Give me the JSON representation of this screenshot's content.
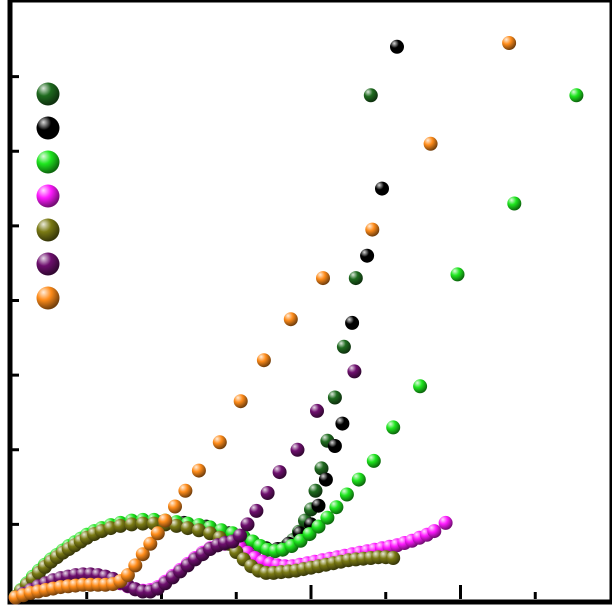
{
  "chart_data": {
    "type": "scatter",
    "title": "",
    "xlabel": "",
    "ylabel": "",
    "xlim": [
      0,
      8
    ],
    "ylim": [
      0,
      8
    ],
    "x_major_ticks": [
      0,
      2,
      4,
      6,
      8
    ],
    "x_minor_ticks": [
      1,
      3,
      5,
      7
    ],
    "y_ticks": [
      1,
      2,
      3,
      4,
      5,
      6,
      7
    ],
    "tick_labels_visible": false,
    "grid": false,
    "legend": {
      "placement": "top-left",
      "series_order": [
        "dark-green",
        "black",
        "green",
        "magenta",
        "olive",
        "purple",
        "orange"
      ]
    },
    "series": [
      {
        "key": "dark-green",
        "color": "#1f6b1f",
        "points": [
          [
            0.05,
            0.03
          ],
          [
            0.12,
            0.11
          ],
          [
            0.2,
            0.2
          ],
          [
            0.28,
            0.29
          ],
          [
            0.36,
            0.37
          ],
          [
            0.44,
            0.45
          ],
          [
            0.52,
            0.52
          ],
          [
            0.6,
            0.58
          ],
          [
            0.68,
            0.64
          ],
          [
            0.76,
            0.7
          ],
          [
            0.84,
            0.75
          ],
          [
            0.92,
            0.8
          ],
          [
            1.0,
            0.85
          ],
          [
            1.1,
            0.9
          ],
          [
            1.2,
            0.94
          ],
          [
            1.32,
            0.98
          ],
          [
            1.45,
            1.01
          ],
          [
            1.6,
            1.04
          ],
          [
            1.75,
            1.05
          ],
          [
            1.9,
            1.05
          ],
          [
            2.05,
            1.04
          ],
          [
            2.2,
            1.02
          ],
          [
            2.35,
            1.0
          ],
          [
            2.5,
            0.98
          ],
          [
            2.65,
            0.95
          ],
          [
            2.8,
            0.91
          ],
          [
            2.95,
            0.87
          ],
          [
            3.1,
            0.82
          ],
          [
            3.22,
            0.76
          ],
          [
            3.32,
            0.7
          ],
          [
            3.42,
            0.66
          ],
          [
            3.52,
            0.65
          ],
          [
            3.6,
            0.67
          ],
          [
            3.68,
            0.72
          ],
          [
            3.76,
            0.79
          ],
          [
            3.84,
            0.9
          ],
          [
            3.92,
            1.05
          ],
          [
            4.0,
            1.2
          ],
          [
            4.06,
            1.45
          ],
          [
            4.14,
            1.75
          ],
          [
            4.22,
            2.12
          ],
          [
            4.32,
            2.7
          ],
          [
            4.44,
            3.38
          ],
          [
            4.6,
            4.3
          ],
          [
            4.8,
            6.75
          ]
        ]
      },
      {
        "key": "black",
        "color": "#000000",
        "points": [
          [
            2.0,
            1.03
          ],
          [
            2.3,
            1.02
          ],
          [
            2.6,
            0.97
          ],
          [
            2.9,
            0.88
          ],
          [
            3.2,
            0.76
          ],
          [
            3.4,
            0.68
          ],
          [
            3.55,
            0.67
          ],
          [
            3.7,
            0.74
          ],
          [
            3.85,
            0.88
          ],
          [
            4.0,
            1.0
          ],
          [
            4.1,
            1.25
          ],
          [
            4.2,
            1.6
          ],
          [
            4.32,
            2.05
          ],
          [
            4.42,
            2.35
          ],
          [
            4.55,
            3.7
          ],
          [
            4.75,
            4.6
          ],
          [
            4.95,
            5.5
          ],
          [
            5.15,
            7.4
          ]
        ]
      },
      {
        "key": "green",
        "color": "#1ee61e",
        "points": [
          [
            0.05,
            0.03
          ],
          [
            0.12,
            0.12
          ],
          [
            0.2,
            0.21
          ],
          [
            0.28,
            0.3
          ],
          [
            0.36,
            0.38
          ],
          [
            0.44,
            0.46
          ],
          [
            0.52,
            0.53
          ],
          [
            0.6,
            0.59
          ],
          [
            0.68,
            0.65
          ],
          [
            0.76,
            0.71
          ],
          [
            0.84,
            0.76
          ],
          [
            0.92,
            0.81
          ],
          [
            1.0,
            0.86
          ],
          [
            1.1,
            0.91
          ],
          [
            1.2,
            0.95
          ],
          [
            1.32,
            0.99
          ],
          [
            1.45,
            1.02
          ],
          [
            1.6,
            1.05
          ],
          [
            1.75,
            1.06
          ],
          [
            1.9,
            1.06
          ],
          [
            2.05,
            1.05
          ],
          [
            2.2,
            1.03
          ],
          [
            2.35,
            1.01
          ],
          [
            2.5,
            0.99
          ],
          [
            2.65,
            0.96
          ],
          [
            2.8,
            0.92
          ],
          [
            2.95,
            0.88
          ],
          [
            3.1,
            0.83
          ],
          [
            3.22,
            0.77
          ],
          [
            3.32,
            0.71
          ],
          [
            3.42,
            0.66
          ],
          [
            3.52,
            0.64
          ],
          [
            3.62,
            0.66
          ],
          [
            3.74,
            0.71
          ],
          [
            3.86,
            0.78
          ],
          [
            3.98,
            0.87
          ],
          [
            4.1,
            0.97
          ],
          [
            4.22,
            1.09
          ],
          [
            4.34,
            1.23
          ],
          [
            4.48,
            1.4
          ],
          [
            4.64,
            1.6
          ],
          [
            4.84,
            1.85
          ],
          [
            5.1,
            2.3
          ],
          [
            5.46,
            2.85
          ],
          [
            5.96,
            4.35
          ],
          [
            6.72,
            5.3
          ],
          [
            7.55,
            6.75
          ]
        ]
      },
      {
        "key": "magenta",
        "color": "#ff1aff",
        "points": [
          [
            0.05,
            0.02
          ],
          [
            0.15,
            0.06
          ],
          [
            0.25,
            0.11
          ],
          [
            0.35,
            0.16
          ],
          [
            0.45,
            0.2
          ],
          [
            0.55,
            0.23
          ],
          [
            0.65,
            0.26
          ],
          [
            0.75,
            0.28
          ],
          [
            0.85,
            0.3
          ],
          [
            0.95,
            0.31
          ],
          [
            1.05,
            0.31
          ],
          [
            1.15,
            0.3
          ],
          [
            1.25,
            0.28
          ],
          [
            1.35,
            0.25
          ],
          [
            1.45,
            0.21
          ],
          [
            1.55,
            0.17
          ],
          [
            1.65,
            0.13
          ],
          [
            1.75,
            0.11
          ],
          [
            1.85,
            0.12
          ],
          [
            1.95,
            0.16
          ],
          [
            2.05,
            0.23
          ],
          [
            2.15,
            0.31
          ],
          [
            2.25,
            0.39
          ],
          [
            2.35,
            0.47
          ],
          [
            2.45,
            0.55
          ],
          [
            2.55,
            0.62
          ],
          [
            2.65,
            0.68
          ],
          [
            2.75,
            0.72
          ],
          [
            2.85,
            0.74
          ],
          [
            2.95,
            0.73
          ],
          [
            3.05,
            0.69
          ],
          [
            3.15,
            0.62
          ],
          [
            3.25,
            0.55
          ],
          [
            3.35,
            0.5
          ],
          [
            3.45,
            0.47
          ],
          [
            3.55,
            0.45
          ],
          [
            3.65,
            0.44
          ],
          [
            3.75,
            0.44
          ],
          [
            3.85,
            0.46
          ],
          [
            3.95,
            0.48
          ],
          [
            4.05,
            0.5
          ],
          [
            4.15,
            0.52
          ],
          [
            4.25,
            0.54
          ],
          [
            4.35,
            0.56
          ],
          [
            4.45,
            0.58
          ],
          [
            4.55,
            0.6
          ],
          [
            4.65,
            0.62
          ],
          [
            4.75,
            0.64
          ],
          [
            4.85,
            0.66
          ],
          [
            4.95,
            0.68
          ],
          [
            5.05,
            0.7
          ],
          [
            5.15,
            0.72
          ],
          [
            5.25,
            0.75
          ],
          [
            5.35,
            0.78
          ],
          [
            5.45,
            0.82
          ],
          [
            5.55,
            0.86
          ],
          [
            5.65,
            0.91
          ],
          [
            5.8,
            1.02
          ]
        ]
      },
      {
        "key": "olive",
        "color": "#7a7a14",
        "points": [
          [
            0.05,
            0.03
          ],
          [
            0.12,
            0.11
          ],
          [
            0.2,
            0.19
          ],
          [
            0.28,
            0.27
          ],
          [
            0.36,
            0.35
          ],
          [
            0.44,
            0.43
          ],
          [
            0.52,
            0.5
          ],
          [
            0.6,
            0.56
          ],
          [
            0.68,
            0.62
          ],
          [
            0.76,
            0.67
          ],
          [
            0.84,
            0.72
          ],
          [
            0.92,
            0.77
          ],
          [
            1.0,
            0.82
          ],
          [
            1.1,
            0.87
          ],
          [
            1.2,
            0.91
          ],
          [
            1.32,
            0.95
          ],
          [
            1.45,
            0.98
          ],
          [
            1.6,
            1.0
          ],
          [
            1.75,
            1.01
          ],
          [
            1.9,
            1.01
          ],
          [
            2.05,
            1.0
          ],
          [
            2.2,
            0.98
          ],
          [
            2.35,
            0.95
          ],
          [
            2.5,
            0.92
          ],
          [
            2.65,
            0.88
          ],
          [
            2.78,
            0.82
          ],
          [
            2.9,
            0.74
          ],
          [
            3.0,
            0.63
          ],
          [
            3.1,
            0.53
          ],
          [
            3.2,
            0.44
          ],
          [
            3.3,
            0.38
          ],
          [
            3.4,
            0.35
          ],
          [
            3.5,
            0.35
          ],
          [
            3.6,
            0.36
          ],
          [
            3.7,
            0.37
          ],
          [
            3.8,
            0.38
          ],
          [
            3.9,
            0.4
          ],
          [
            4.0,
            0.42
          ],
          [
            4.1,
            0.44
          ],
          [
            4.2,
            0.46
          ],
          [
            4.3,
            0.48
          ],
          [
            4.4,
            0.5
          ],
          [
            4.5,
            0.52
          ],
          [
            4.6,
            0.53
          ],
          [
            4.7,
            0.54
          ],
          [
            4.8,
            0.55
          ],
          [
            4.9,
            0.56
          ],
          [
            5.0,
            0.56
          ],
          [
            5.1,
            0.55
          ]
        ]
      },
      {
        "key": "purple",
        "color": "#6e0f6e",
        "points": [
          [
            0.05,
            0.02
          ],
          [
            0.15,
            0.07
          ],
          [
            0.25,
            0.12
          ],
          [
            0.35,
            0.17
          ],
          [
            0.45,
            0.21
          ],
          [
            0.55,
            0.25
          ],
          [
            0.65,
            0.28
          ],
          [
            0.75,
            0.3
          ],
          [
            0.85,
            0.32
          ],
          [
            0.95,
            0.33
          ],
          [
            1.05,
            0.33
          ],
          [
            1.15,
            0.32
          ],
          [
            1.25,
            0.3
          ],
          [
            1.35,
            0.27
          ],
          [
            1.45,
            0.23
          ],
          [
            1.55,
            0.18
          ],
          [
            1.65,
            0.13
          ],
          [
            1.75,
            0.1
          ],
          [
            1.85,
            0.1
          ],
          [
            1.95,
            0.14
          ],
          [
            2.05,
            0.21
          ],
          [
            2.15,
            0.29
          ],
          [
            2.25,
            0.37
          ],
          [
            2.35,
            0.45
          ],
          [
            2.45,
            0.53
          ],
          [
            2.55,
            0.6
          ],
          [
            2.65,
            0.67
          ],
          [
            2.75,
            0.72
          ],
          [
            2.85,
            0.75
          ],
          [
            2.95,
            0.77
          ],
          [
            3.05,
            0.85
          ],
          [
            3.15,
            1.0
          ],
          [
            3.27,
            1.18
          ],
          [
            3.42,
            1.42
          ],
          [
            3.58,
            1.7
          ],
          [
            3.82,
            2.0
          ],
          [
            4.08,
            2.52
          ],
          [
            4.58,
            3.05
          ]
        ]
      },
      {
        "key": "orange",
        "color": "#ff8c1a",
        "points": [
          [
            0.05,
            0.02
          ],
          [
            0.15,
            0.05
          ],
          [
            0.25,
            0.08
          ],
          [
            0.35,
            0.1
          ],
          [
            0.45,
            0.12
          ],
          [
            0.55,
            0.14
          ],
          [
            0.65,
            0.16
          ],
          [
            0.75,
            0.17
          ],
          [
            0.85,
            0.18
          ],
          [
            0.95,
            0.19
          ],
          [
            1.05,
            0.19
          ],
          [
            1.15,
            0.19
          ],
          [
            1.25,
            0.19
          ],
          [
            1.35,
            0.2
          ],
          [
            1.45,
            0.24
          ],
          [
            1.55,
            0.32
          ],
          [
            1.65,
            0.45
          ],
          [
            1.75,
            0.6
          ],
          [
            1.85,
            0.74
          ],
          [
            1.95,
            0.88
          ],
          [
            2.05,
            1.05
          ],
          [
            2.18,
            1.24
          ],
          [
            2.32,
            1.45
          ],
          [
            2.5,
            1.72
          ],
          [
            2.78,
            2.1
          ],
          [
            3.06,
            2.65
          ],
          [
            3.37,
            3.2
          ],
          [
            3.73,
            3.75
          ],
          [
            4.16,
            4.3
          ],
          [
            4.82,
            4.95
          ],
          [
            5.6,
            6.1
          ],
          [
            6.65,
            7.45
          ]
        ]
      }
    ]
  }
}
